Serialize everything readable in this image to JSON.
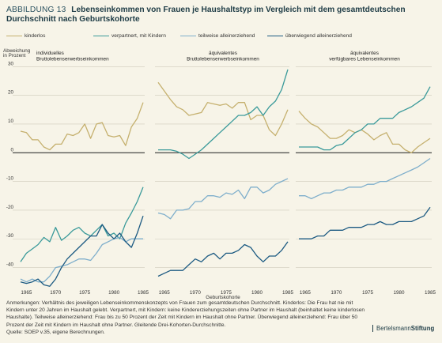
{
  "header": {
    "tag": "ABBILDUNG 13",
    "title": "Lebenseinkommen von Frauen je Haushaltstyp im Vergleich mit dem gesamtdeutschen Durchschnitt nach Geburtskohorte"
  },
  "legend": [
    {
      "label": "kinderlos",
      "color": "#c5b06e"
    },
    {
      "label": "verpartnert, mit Kindern",
      "color": "#3a9a9a"
    },
    {
      "label": "teilweise alleinerziehend",
      "color": "#7eaecb"
    },
    {
      "label": "überwiegend alleinerziehend",
      "color": "#1c5a82"
    }
  ],
  "axes": {
    "y_label_line1": "Abweichung",
    "y_label_line2": "in Prozent",
    "x_label": "Geburtskohorte"
  },
  "notes": {
    "line1": "Anmerkungen: Verhältnis des jeweiligen Lebenseinkommenskonzepts von Frauen zum gesamtdeutschen Durchschnitt. Kinderlos: Die Frau hat nie mit Kindern unter 20 Jahren im Haushalt gelebt. Verpartnert, mit Kindern: keine Kindererziehungszeiten ohne Partner im Haushalt (beinhaltet keine kinderlosen Haushalte). Teilweise alleinerziehend: Frau bis zu 50 Prozent der Zeit mit Kindern im Haushalt ohne Partner. Überwiegend alleinerziehend: Frau über 50 Prozent der Zeit mit Kindern im Haushalt ohne Partner. Gleitende Drei-Kohorten-Durchschnitte.",
    "source": "Quelle: SOEP v.35, eigene Berechnungen."
  },
  "brand": {
    "part1": "Bertelsmann",
    "part2": "Stiftung"
  },
  "chart_data": [
    {
      "type": "line",
      "title": "individuelles Bruttolebenserwerbseinkommen",
      "x": [
        1964,
        1965,
        1966,
        1967,
        1968,
        1969,
        1970,
        1971,
        1972,
        1973,
        1974,
        1975,
        1976,
        1977,
        1978,
        1979,
        1980,
        1981,
        1982,
        1983,
        1984,
        1985
      ],
      "ylim": [
        -47,
        32
      ],
      "yticks": [
        30,
        20,
        10,
        0,
        -10,
        -20,
        -30,
        -40
      ],
      "xticks": [
        1965,
        1970,
        1975,
        1980,
        1985
      ],
      "series": [
        {
          "name": "kinderlos",
          "values": [
            7.5,
            7,
            4.5,
            4.5,
            2,
            1,
            3,
            3,
            6.5,
            6,
            7,
            10,
            5,
            10,
            10.5,
            6,
            5.5,
            6,
            2.5,
            9,
            12,
            17.5
          ]
        },
        {
          "name": "verpartnert, mit Kindern",
          "values": [
            -38,
            -35,
            -33.5,
            -32,
            -29.5,
            -31,
            -26,
            -30.5,
            -29,
            -27,
            -26,
            -28,
            -29,
            -27,
            -25,
            -29,
            -28,
            -30,
            -24.5,
            -21,
            -17,
            -12
          ]
        },
        {
          "name": "teilweise alleinerziehend",
          "values": [
            -44,
            -45,
            -44,
            -45,
            -45,
            -43,
            -40,
            -39.5,
            -39,
            -38,
            -37,
            -37,
            -37.5,
            -35,
            -32,
            -31,
            -30,
            -29.5,
            -31,
            -30,
            -30,
            -30
          ]
        },
        {
          "name": "überwiegend alleinerziehend",
          "values": [
            -45,
            -45.5,
            -45,
            -44,
            -46,
            -46.5,
            -44,
            -40,
            -37,
            -35,
            -33,
            -31,
            -29,
            -29,
            -25,
            -28,
            -30,
            -28,
            -31,
            -33,
            -28,
            -22
          ]
        }
      ]
    },
    {
      "type": "line",
      "title": "äquivalentes Bruttolebenserwerbseinkommen",
      "x": [
        1964,
        1965,
        1966,
        1967,
        1968,
        1969,
        1970,
        1971,
        1972,
        1973,
        1974,
        1975,
        1976,
        1977,
        1978,
        1979,
        1980,
        1981,
        1982,
        1983,
        1984,
        1985
      ],
      "ylim": [
        -47,
        32
      ],
      "yticks": [
        30,
        20,
        10,
        0,
        -10,
        -20,
        -30,
        -40
      ],
      "xticks": [
        1965,
        1970,
        1975,
        1980,
        1985
      ],
      "series": [
        {
          "name": "kinderlos",
          "values": [
            24.5,
            21.5,
            18.5,
            16,
            15,
            13,
            13.5,
            14,
            17.5,
            17,
            16.5,
            17,
            15.5,
            17.5,
            17.5,
            11.5,
            13,
            13,
            8,
            6,
            10,
            15
          ]
        },
        {
          "name": "verpartnert, mit Kindern",
          "values": [
            1,
            1,
            1,
            0.5,
            -0.5,
            -2,
            -0.5,
            1,
            3,
            5,
            7,
            9,
            11,
            13,
            13,
            14,
            16,
            13,
            16,
            18,
            22,
            29
          ]
        },
        {
          "name": "teilweise alleinerziehend",
          "values": [
            -21,
            -21.5,
            -23,
            -20,
            -20,
            -19.5,
            -17,
            -17,
            -15,
            -15,
            -15.5,
            -14,
            -14.5,
            -13,
            -16,
            -12,
            -12,
            -14,
            -13,
            -11,
            -10,
            -9
          ]
        },
        {
          "name": "überwiegend alleinerziehend",
          "values": [
            -43,
            -42,
            -41,
            -41,
            -41,
            -39,
            -37,
            -38,
            -36,
            -35,
            -37,
            -35,
            -35,
            -34,
            -32,
            -33,
            -36,
            -38,
            -36,
            -36,
            -34,
            -31
          ]
        }
      ]
    },
    {
      "type": "line",
      "title": "äquivalentes verfügbares Lebenseinkommen",
      "x": [
        1964,
        1965,
        1966,
        1967,
        1968,
        1969,
        1970,
        1971,
        1972,
        1973,
        1974,
        1975,
        1976,
        1977,
        1978,
        1979,
        1980,
        1981,
        1982,
        1983,
        1984,
        1985
      ],
      "ylim": [
        -47,
        32
      ],
      "yticks": [
        30,
        20,
        10,
        0,
        -10,
        -20,
        -30,
        -40
      ],
      "xticks": [
        1965,
        1970,
        1975,
        1980,
        1985
      ],
      "series": [
        {
          "name": "kinderlos",
          "values": [
            14.5,
            12,
            10,
            9,
            7,
            5,
            5,
            6,
            8,
            7,
            8,
            6.5,
            4.5,
            6,
            7,
            3,
            3,
            1,
            0,
            2,
            3.5,
            5
          ]
        },
        {
          "name": "verpartnert, mit Kindern",
          "values": [
            2,
            2,
            2,
            2,
            1,
            1,
            2.5,
            3,
            5,
            7,
            8,
            10,
            10,
            12,
            12,
            12,
            14,
            15,
            16,
            17.5,
            19,
            23
          ]
        },
        {
          "name": "teilweise alleinerziehend",
          "values": [
            -15,
            -15,
            -16,
            -15,
            -14,
            -14,
            -13,
            -13,
            -12,
            -12,
            -12,
            -11,
            -11,
            -10,
            -10,
            -9,
            -8,
            -7,
            -6,
            -5,
            -3.5,
            -2
          ]
        },
        {
          "name": "überwiegend alleinerziehend",
          "values": [
            -30,
            -30,
            -30,
            -29,
            -29,
            -27,
            -27,
            -27,
            -26,
            -26,
            -26,
            -25,
            -25,
            -24,
            -25,
            -25,
            -24,
            -24,
            -24,
            -23,
            -22,
            -19
          ]
        }
      ]
    }
  ]
}
